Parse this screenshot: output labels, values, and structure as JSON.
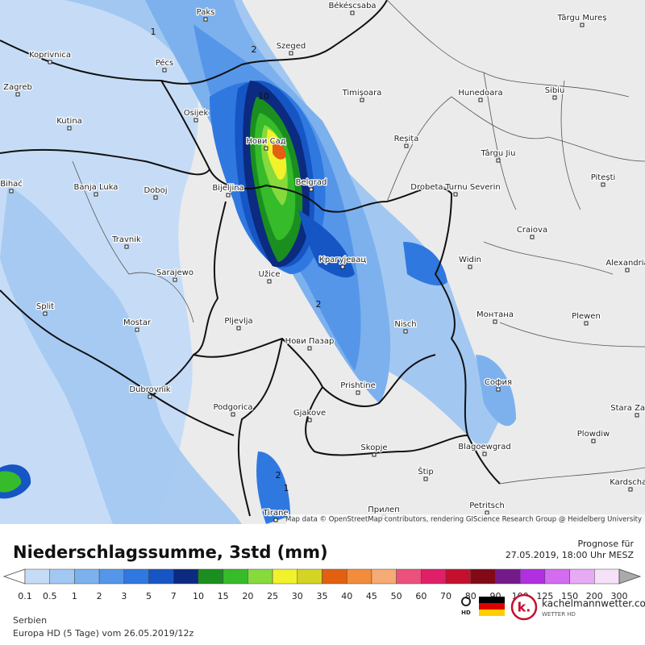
{
  "map": {
    "cities": [
      "Paks",
      "Békéscsaba",
      "Târgu Mureș",
      "Koprivnica",
      "Pécs",
      "Szeged",
      "Zagreb",
      "Osijek",
      "Timișoara",
      "Hunedoara",
      "Sibiu",
      "Kutina",
      "Нови Сад",
      "Reșița",
      "Târgu Jiu",
      "Bihać",
      "Banja Luka",
      "Doboj",
      "Bijeljina",
      "Belgrad",
      "Drobeta-Turnu Severin",
      "Pitești",
      "Craiova",
      "Travnik",
      "Крагујевац",
      "Widin",
      "Alexandria",
      "Sarajewo",
      "Užice",
      "Split",
      "Монтана",
      "Plewen",
      "Mostar",
      "Pljevlja",
      "Nisch",
      "Нови Пазар",
      "София",
      "Prishtine",
      "Dubrovnik",
      "Podgorica",
      "Stara Zagora",
      "Gjakove",
      "Plowdiw",
      "Blagoewgrad",
      "Skopje",
      "Štip",
      "Kardschali",
      "Tirane",
      "Прилеп",
      "Petritsch"
    ],
    "contour_labels": [
      "1",
      "2",
      "10",
      "2",
      "2",
      "1"
    ],
    "attribution": "Map data © OpenStreetMap contributors, rendering GIScience Research Group @ Heidelberg University"
  },
  "footer": {
    "title": "Niederschlagssumme, 3std (mm)",
    "forecast_label": "Prognose für",
    "forecast_time": "27.05.2019, 18:00 Uhr MESZ",
    "region": "Serbien",
    "model": "Europa HD (5 Tage) vom 26.05.2019/12z",
    "hd_badge": "HD",
    "brand": "kachelmannwetter.com",
    "brand_sub": "WETTER HD",
    "logo_letter": "k."
  },
  "legend": {
    "labels": [
      "0.1",
      "0.5",
      "1",
      "2",
      "3",
      "5",
      "7",
      "10",
      "15",
      "20",
      "25",
      "30",
      "35",
      "40",
      "45",
      "50",
      "60",
      "70",
      "80",
      "90",
      "100",
      "125",
      "150",
      "200",
      "300"
    ],
    "colors": [
      "#c6dcf6",
      "#a2c8f2",
      "#7cb1ee",
      "#5596e9",
      "#2f78e0",
      "#1656c4",
      "#0b2a80",
      "#1a8f20",
      "#36bb2a",
      "#86da3c",
      "#f2f22c",
      "#d4d424",
      "#e2600f",
      "#f38c3a",
      "#f6aa74",
      "#ec507c",
      "#df1f68",
      "#c4102e",
      "#820a18",
      "#741a8a",
      "#b22fe0",
      "#d36cf0",
      "#e8aaf4",
      "#f6e2f8"
    ],
    "over_color": "#aaaaaa"
  }
}
